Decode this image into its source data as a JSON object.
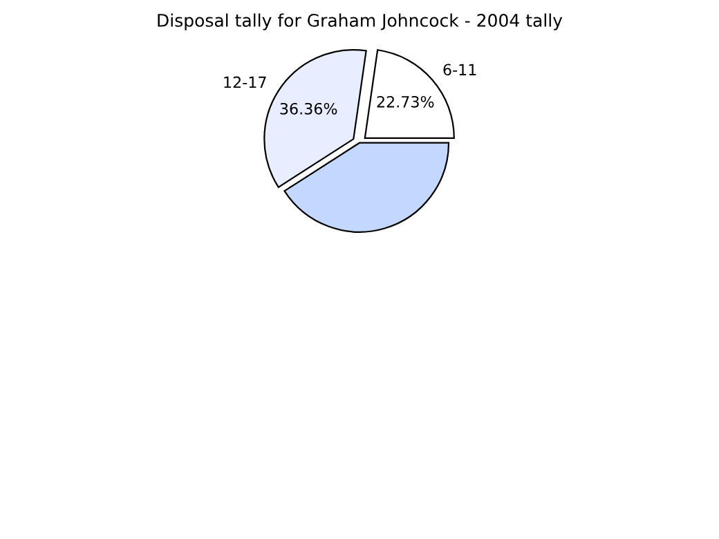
{
  "chart_data": {
    "type": "pie",
    "title": "Disposal tally for Graham Johncock - 2004 tally",
    "categories": [
      "6-11",
      "12-17",
      null
    ],
    "values": [
      22.73,
      36.36,
      40.91
    ],
    "value_labels": [
      "22.73%",
      "36.36%",
      null
    ],
    "colors": [
      "#ffffff",
      "#e8eeff",
      "#c4d8ff"
    ]
  }
}
